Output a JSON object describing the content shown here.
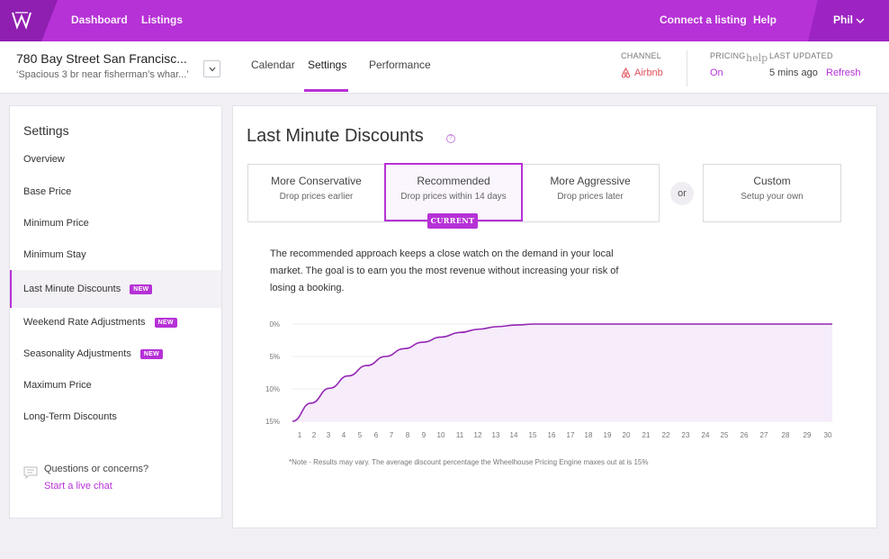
{
  "nav": {
    "dashboard": "Dashboard",
    "listings": "Listings",
    "connect": "Connect a listing",
    "help": "Help",
    "user": "Phil"
  },
  "property": {
    "name": "780 Bay Street San Francisc...",
    "description": "‘Spacious 3 br near fisherman’s whar...’"
  },
  "tabs": {
    "calendar": "Calendar",
    "settings": "Settings",
    "performance": "Performance"
  },
  "meta": {
    "channel_label": "CHANNEL",
    "channel_value": "Airbnb",
    "pricing_label": "PRICING",
    "pricing_help": "help",
    "pricing_value": "On",
    "updated_label": "LAST UPDATED",
    "updated_value": "5 mins ago",
    "refresh": "Refresh"
  },
  "sidebar": {
    "title": "Settings",
    "items": [
      {
        "label": "Overview",
        "badge": ""
      },
      {
        "label": "Base Price",
        "badge": ""
      },
      {
        "label": "Minimum Price",
        "badge": ""
      },
      {
        "label": "Minimum Stay",
        "badge": ""
      },
      {
        "label": "Last Minute Discounts",
        "badge": "NEW"
      },
      {
        "label": "Weekend Rate Adjustments",
        "badge": "NEW"
      },
      {
        "label": "Seasonality Adjustments",
        "badge": "NEW"
      },
      {
        "label": "Maximum Price",
        "badge": ""
      },
      {
        "label": "Long-Term Discounts",
        "badge": ""
      }
    ],
    "active_index": 4,
    "question": "Questions or concerns?",
    "chat": "Start a live chat"
  },
  "main": {
    "title": "Last Minute Discounts",
    "title_help": "?",
    "options": [
      {
        "title": "More Conservative",
        "sub": "Drop prices earlier"
      },
      {
        "title": "Recommended",
        "sub": "Drop prices within 14 days"
      },
      {
        "title": "More Aggressive",
        "sub": "Drop prices later"
      }
    ],
    "current_tag": "CURRENT",
    "or": "or",
    "custom": {
      "title": "Custom",
      "sub": "Setup your own"
    },
    "description": "The recommended approach keeps a close watch on the demand in your local market. The goal is to earn you the most revenue without increasing your risk of losing a booking.",
    "note": "*Note - Results may vary. The average discount percentage the Wheelhouse Pricing Engine maxes out at is 15%"
  },
  "colors": {
    "brand": "#b631d6",
    "airbnb": "#e0505a"
  },
  "chart_data": {
    "type": "area",
    "x": [
      1,
      2,
      3,
      4,
      5,
      6,
      7,
      8,
      9,
      10,
      11,
      12,
      13,
      14,
      15,
      16,
      17,
      18,
      19,
      20,
      21,
      22,
      23,
      24,
      25,
      26,
      27,
      28,
      29,
      30
    ],
    "y_tick_labels": [
      "0%",
      "5%",
      "10%",
      "15%"
    ],
    "y_ticks": [
      0,
      5,
      10,
      15
    ],
    "ylim": [
      0,
      15
    ],
    "y_inverted": true,
    "series": [
      {
        "values": [
          15,
          12.2,
          9.9,
          8.0,
          6.4,
          5.0,
          3.8,
          2.8,
          2.0,
          1.3,
          0.8,
          0.4,
          0.15,
          0,
          0,
          0,
          0,
          0,
          0,
          0,
          0,
          0,
          0,
          0,
          0,
          0,
          0,
          0,
          0,
          0
        ]
      }
    ],
    "grid": true
  }
}
